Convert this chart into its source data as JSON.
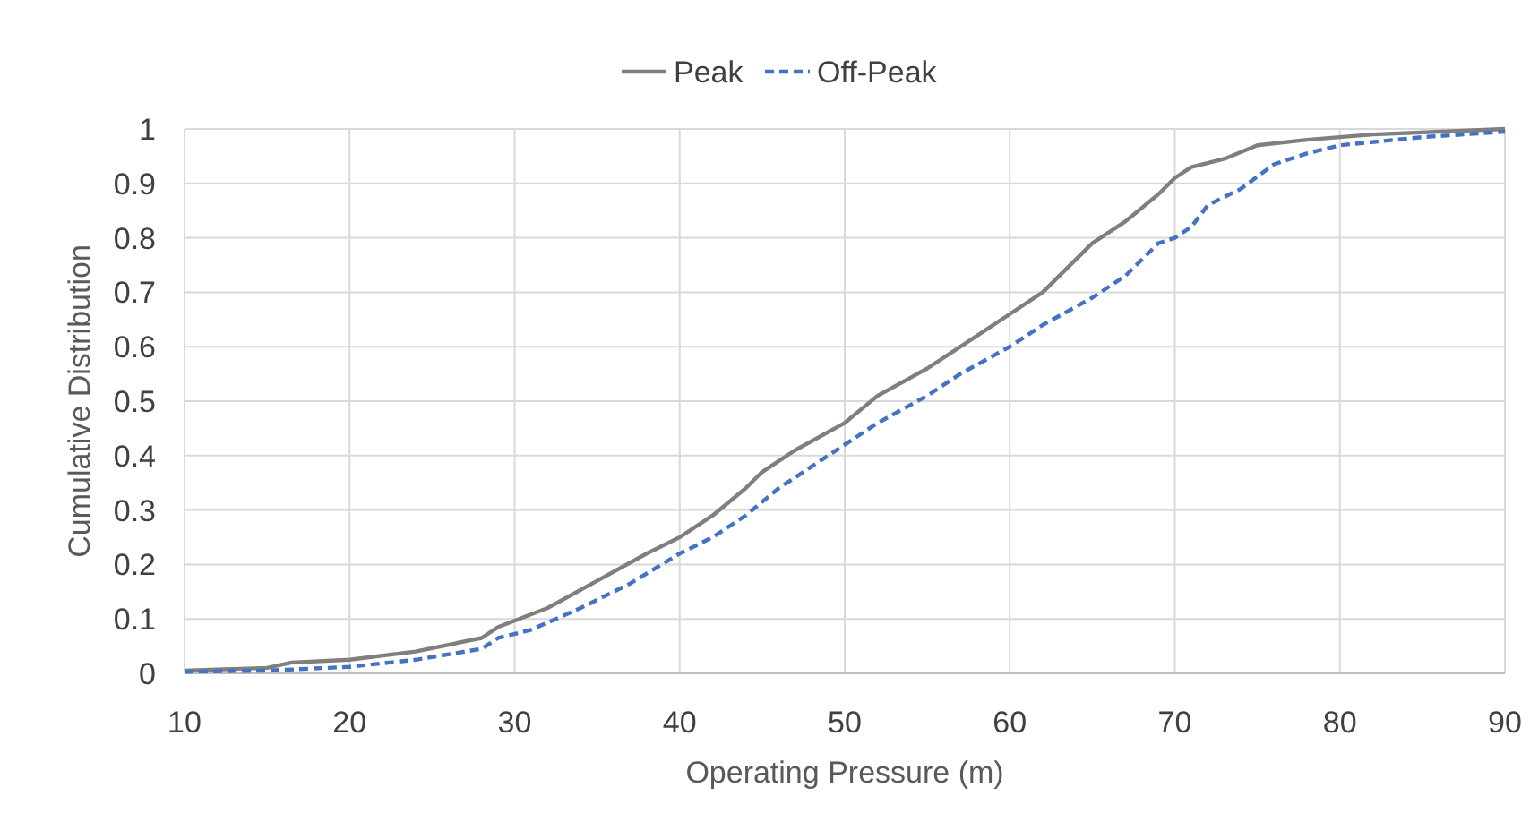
{
  "chart_data": {
    "type": "line",
    "xlabel": "Operating Pressure (m)",
    "ylabel": "Cumulative Distribution",
    "xlim": [
      10,
      90
    ],
    "xticks": [
      10,
      20,
      30,
      40,
      50,
      60,
      70,
      80,
      90
    ],
    "ylim": [
      0,
      1
    ],
    "yticks": [
      0,
      0.1,
      0.2,
      0.3,
      0.4,
      0.5,
      0.6,
      0.7,
      0.8,
      0.9,
      1
    ],
    "grid": true,
    "legend": "top",
    "marker": "none",
    "series": [
      {
        "name": "Peak",
        "color": "#7f7f7f",
        "line_style": "solid",
        "x": [
          10,
          15,
          16.5,
          20,
          24,
          28,
          29,
          32,
          35,
          38,
          40,
          42,
          44,
          45,
          47,
          50,
          52,
          55,
          58,
          60,
          62,
          64,
          65,
          67,
          69,
          70,
          71,
          73,
          75,
          78,
          82,
          90
        ],
        "values": [
          0.005,
          0.01,
          0.02,
          0.025,
          0.04,
          0.065,
          0.085,
          0.12,
          0.17,
          0.22,
          0.25,
          0.29,
          0.34,
          0.37,
          0.41,
          0.46,
          0.51,
          0.56,
          0.62,
          0.66,
          0.7,
          0.76,
          0.79,
          0.83,
          0.88,
          0.91,
          0.93,
          0.945,
          0.97,
          0.98,
          0.99,
          1.0
        ]
      },
      {
        "name": "Off-Peak",
        "color": "#4472c4",
        "line_style": "dashed",
        "x": [
          10,
          15,
          20,
          24,
          28,
          29,
          31,
          34,
          37,
          40,
          42,
          44,
          46,
          48,
          50,
          52,
          55,
          57,
          60,
          62,
          65,
          67,
          69,
          70,
          71,
          72,
          74,
          76,
          78,
          80,
          85,
          90
        ],
        "values": [
          0.003,
          0.005,
          0.012,
          0.025,
          0.045,
          0.065,
          0.08,
          0.12,
          0.165,
          0.22,
          0.25,
          0.29,
          0.34,
          0.38,
          0.42,
          0.46,
          0.51,
          0.55,
          0.6,
          0.64,
          0.69,
          0.73,
          0.79,
          0.8,
          0.82,
          0.86,
          0.89,
          0.935,
          0.955,
          0.97,
          0.985,
          0.995
        ]
      }
    ]
  }
}
